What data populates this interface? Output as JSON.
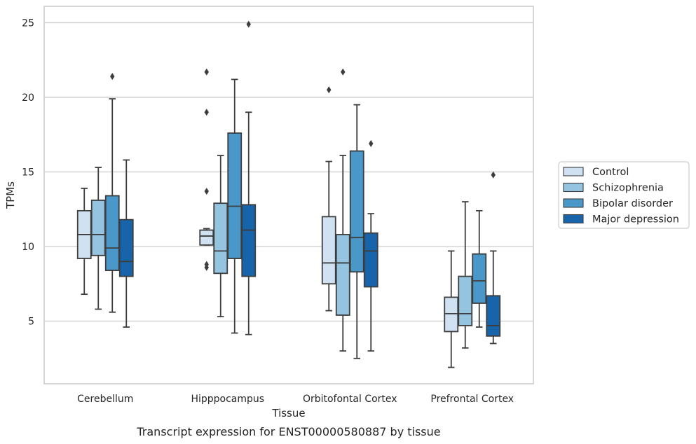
{
  "chart_data": {
    "type": "box",
    "title": "",
    "caption": "Transcript expression for ENST00000580887 by tissue",
    "xlabel": "Tissue",
    "ylabel": "TPMs",
    "ylim": [
      0.8,
      26.1
    ],
    "yticks": [
      5,
      10,
      15,
      20,
      25
    ],
    "grid": "horizontal",
    "legend_position": "right",
    "categories": [
      "Cerebellum",
      "Hipppocampus",
      "Orbitofontal Cortex",
      "Prefrontal Cortex"
    ],
    "series": [
      {
        "name": "Control",
        "color": "#d0e1f2",
        "boxes": [
          {
            "whislo": 6.8,
            "q1": 9.2,
            "med": 10.8,
            "q3": 12.4,
            "whishi": 13.9,
            "fliers": []
          },
          {
            "whislo": 10.1,
            "q1": 10.1,
            "med": 10.7,
            "q3": 11.1,
            "whishi": 11.2,
            "fliers": [
              8.6,
              8.8,
              13.7,
              19.0,
              21.7
            ]
          },
          {
            "whislo": 5.7,
            "q1": 7.5,
            "med": 8.9,
            "q3": 12.0,
            "whishi": 15.7,
            "fliers": [
              20.5
            ]
          },
          {
            "whislo": 1.9,
            "q1": 4.3,
            "med": 5.5,
            "q3": 6.6,
            "whishi": 9.7,
            "fliers": []
          }
        ]
      },
      {
        "name": "Schizophrenia",
        "color": "#94c4df",
        "boxes": [
          {
            "whislo": 5.8,
            "q1": 9.4,
            "med": 10.8,
            "q3": 13.1,
            "whishi": 15.3,
            "fliers": []
          },
          {
            "whislo": 5.3,
            "q1": 8.2,
            "med": 9.7,
            "q3": 12.9,
            "whishi": 16.1,
            "fliers": []
          },
          {
            "whislo": 3.0,
            "q1": 5.4,
            "med": 8.9,
            "q3": 10.8,
            "whishi": 16.1,
            "fliers": [
              21.7
            ]
          },
          {
            "whislo": 3.2,
            "q1": 4.7,
            "med": 5.5,
            "q3": 8.0,
            "whishi": 13.0,
            "fliers": []
          }
        ]
      },
      {
        "name": "Bipolar disorder",
        "color": "#4a98c9",
        "boxes": [
          {
            "whislo": 5.6,
            "q1": 8.4,
            "med": 9.9,
            "q3": 13.4,
            "whishi": 19.9,
            "fliers": [
              21.4
            ]
          },
          {
            "whislo": 4.2,
            "q1": 9.2,
            "med": 12.7,
            "q3": 17.6,
            "whishi": 21.2,
            "fliers": []
          },
          {
            "whislo": 2.5,
            "q1": 8.3,
            "med": 10.6,
            "q3": 16.4,
            "whishi": 19.5,
            "fliers": []
          },
          {
            "whislo": 4.6,
            "q1": 6.2,
            "med": 7.7,
            "q3": 9.5,
            "whishi": 12.4,
            "fliers": []
          }
        ]
      },
      {
        "name": "Major depression",
        "color": "#1764ab",
        "boxes": [
          {
            "whislo": 4.6,
            "q1": 8.0,
            "med": 9.0,
            "q3": 11.8,
            "whishi": 15.8,
            "fliers": []
          },
          {
            "whislo": 4.1,
            "q1": 8.0,
            "med": 11.1,
            "q3": 12.8,
            "whishi": 19.0,
            "fliers": [
              24.9
            ]
          },
          {
            "whislo": 3.0,
            "q1": 7.3,
            "med": 9.7,
            "q3": 10.9,
            "whishi": 12.2,
            "fliers": [
              16.9
            ]
          },
          {
            "whislo": 3.5,
            "q1": 4.0,
            "med": 4.7,
            "q3": 6.7,
            "whishi": 9.7,
            "fliers": [
              14.8
            ]
          }
        ]
      }
    ]
  }
}
